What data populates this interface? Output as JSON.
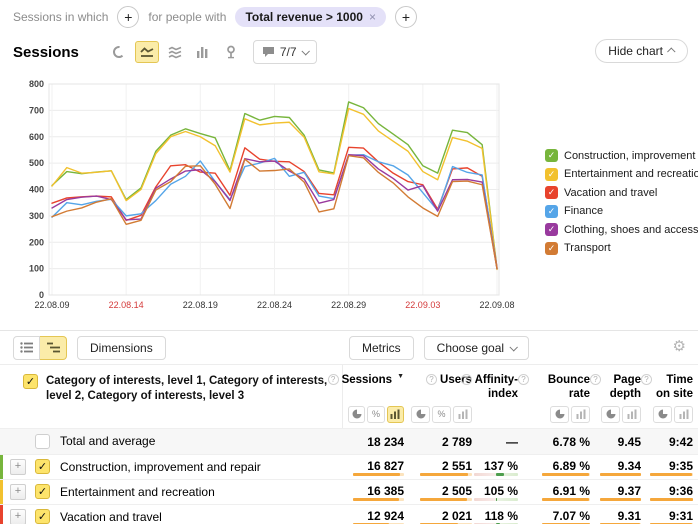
{
  "filter_bar": {
    "sessions_in_which": "Sessions in which",
    "for_people_with": "for people with",
    "segment_pill": "Total revenue > 1000",
    "remove_pill": "×",
    "add_button": "+"
  },
  "chart_header": {
    "title": "Sessions",
    "annotations_count": "7/7",
    "hide_chart": "Hide chart"
  },
  "chart_data": {
    "type": "line",
    "title": "Sessions",
    "ylim": [
      0,
      800
    ],
    "y_tick_step": 100,
    "grid": true,
    "legend_position": "right",
    "x_dates": [
      "22.08.09",
      "22.08.10",
      "22.08.11",
      "22.08.12",
      "22.08.13",
      "22.08.14",
      "22.08.15",
      "22.08.16",
      "22.08.17",
      "22.08.18",
      "22.08.19",
      "22.08.20",
      "22.08.21",
      "22.08.22",
      "22.08.23",
      "22.08.24",
      "22.08.25",
      "22.08.26",
      "22.08.27",
      "22.08.28",
      "22.08.29",
      "22.08.30",
      "22.08.31",
      "22.09.01",
      "22.09.02",
      "22.09.03",
      "22.09.04",
      "22.09.05",
      "22.09.06",
      "22.09.07",
      "22.09.08"
    ],
    "x_tick_labels": [
      "22.08.09",
      "22.08.14",
      "22.08.19",
      "22.08.24",
      "22.08.29",
      "22.09.03",
      "22.09.08"
    ],
    "x_tick_indices": [
      0,
      5,
      10,
      15,
      20,
      25,
      30
    ],
    "red_tick_labels": [
      "22.08.14",
      "22.09.03"
    ],
    "series": [
      {
        "name": "Construction, improvement and repair",
        "color": "#77b53c",
        "values": [
          415,
          468,
          460,
          466,
          471,
          362,
          406,
          545,
          606,
          630,
          612,
          596,
          472,
          688,
          663,
          677,
          673,
          606,
          474,
          463,
          732,
          710,
          650,
          610,
          570,
          490,
          462,
          625,
          616,
          570,
          100
        ]
      },
      {
        "name": "Entertainment and recreation",
        "color": "#f2c12e",
        "values": [
          413,
          483,
          462,
          465,
          471,
          358,
          400,
          536,
          600,
          620,
          600,
          566,
          466,
          668,
          645,
          652,
          655,
          598,
          467,
          459,
          707,
          685,
          622,
          583,
          545,
          468,
          437,
          597,
          583,
          556,
          97
        ]
      },
      {
        "name": "Vacation and travel",
        "color": "#e8432d",
        "values": [
          348,
          368,
          372,
          375,
          372,
          283,
          302,
          410,
          490,
          494,
          466,
          462,
          378,
          558,
          515,
          507,
          505,
          468,
          385,
          380,
          560,
          557,
          505,
          462,
          430,
          418,
          325,
          478,
          482,
          450,
          105
        ]
      },
      {
        "name": "Finance",
        "color": "#55a5e8",
        "values": [
          295,
          350,
          342,
          355,
          363,
          300,
          308,
          358,
          420,
          450,
          508,
          430,
          362,
          487,
          500,
          518,
          450,
          465,
          375,
          365,
          530,
          532,
          505,
          490,
          455,
          388,
          320,
          487,
          465,
          455,
          100
        ]
      },
      {
        "name": "Clothing, shoes and accessories",
        "color": "#993a9e",
        "values": [
          330,
          362,
          371,
          375,
          362,
          285,
          288,
          405,
          440,
          470,
          475,
          430,
          358,
          517,
          505,
          508,
          470,
          440,
          348,
          362,
          532,
          528,
          478,
          442,
          398,
          415,
          318,
          437,
          438,
          428,
          100
        ]
      },
      {
        "name": "Transport",
        "color": "#d27b34",
        "values": [
          297,
          318,
          330,
          352,
          365,
          268,
          283,
          398,
          430,
          488,
          490,
          420,
          328,
          515,
          470,
          472,
          478,
          428,
          315,
          327,
          528,
          520,
          465,
          425,
          372,
          330,
          298,
          430,
          432,
          418,
          100
        ]
      }
    ]
  },
  "table": {
    "toolbar": {
      "dimensions": "Dimensions",
      "metrics": "Metrics",
      "choose_goal": "Choose goal"
    },
    "dimension_header": "Category of interests, level 1, Category of interests, level 2, Category of interests, level 3",
    "columns": [
      {
        "label": "Sessions"
      },
      {
        "label": "Users"
      },
      {
        "label": "Affinity-index"
      },
      {
        "label": "Bounce rate"
      },
      {
        "label": "Page depth"
      },
      {
        "label": "Time on site"
      }
    ],
    "rows": [
      {
        "label": "Total and average",
        "checked": false,
        "sessions": "18 234",
        "users": "2 789",
        "affinity_index": "—",
        "bounce_rate": "6.78 %",
        "page_depth": "9.45",
        "time_on_site": "9:42"
      },
      {
        "label": "Construction, improvement and repair",
        "checked": true,
        "color": "#77b53c",
        "sessions": "16 827",
        "users": "2 551",
        "affinity_index": "137 %",
        "bounce_rate": "6.89 %",
        "page_depth": "9.34",
        "time_on_site": "9:35"
      },
      {
        "label": "Entertainment and recreation",
        "checked": true,
        "color": "#f2c12e",
        "sessions": "16 385",
        "users": "2 505",
        "affinity_index": "105 %",
        "bounce_rate": "6.91 %",
        "page_depth": "9.37",
        "time_on_site": "9:36"
      },
      {
        "label": "Vacation and travel",
        "checked": true,
        "color": "#e8432d",
        "sessions": "12 924",
        "users": "2 021",
        "affinity_index": "118 %",
        "bounce_rate": "7.07 %",
        "page_depth": "9.31",
        "time_on_site": "9:31"
      }
    ]
  }
}
